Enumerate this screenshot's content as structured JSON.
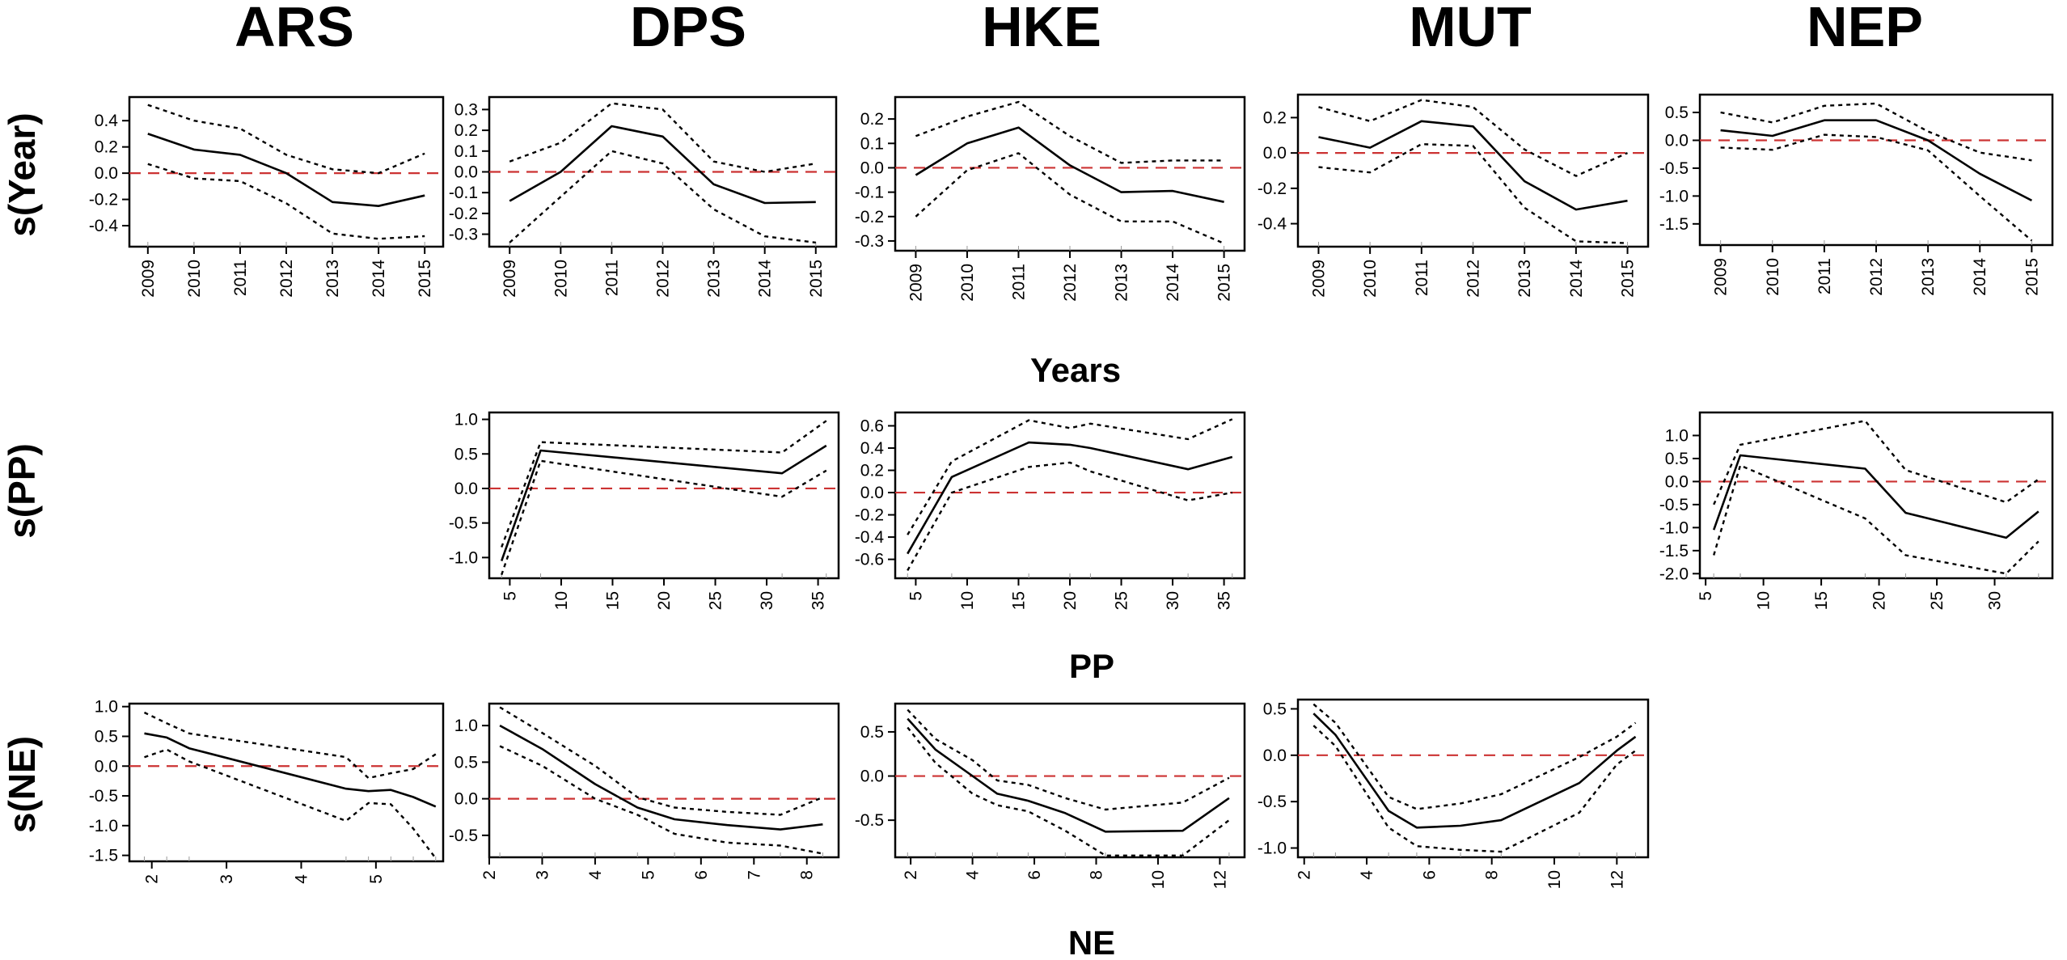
{
  "column_titles": [
    "ARS",
    "DPS",
    "HKE",
    "MUT",
    "NEP"
  ],
  "row_titles": [
    "s(Year)",
    "s(PP)",
    "s(NE)"
  ],
  "axis_titles": [
    "Years",
    "PP",
    "NE"
  ],
  "colors": {
    "fit": "#000000",
    "ci": "#000000",
    "reference": "#cc3333",
    "frame": "#000000"
  },
  "chart_data": [
    {
      "id": "year-ARS",
      "type": "line",
      "ylabel": "s(Year)",
      "xlabel": "Years",
      "xlim": [
        2008.6,
        2015.4
      ],
      "ylim": [
        -0.56,
        0.58
      ],
      "xticks": [
        2009,
        2010,
        2011,
        2012,
        2013,
        2014,
        2015
      ],
      "yticks": [
        -0.4,
        -0.2,
        0.0,
        0.2,
        0.4
      ],
      "x": [
        2009,
        2010,
        2011,
        2012,
        2013,
        2014,
        2015
      ],
      "series": [
        {
          "name": "fit",
          "values": [
            0.3,
            0.18,
            0.14,
            0.0,
            -0.22,
            -0.25,
            -0.17
          ]
        },
        {
          "name": "upper",
          "values": [
            0.52,
            0.4,
            0.34,
            0.14,
            0.03,
            0.0,
            0.15
          ]
        },
        {
          "name": "lower",
          "values": [
            0.07,
            -0.04,
            -0.06,
            -0.23,
            -0.46,
            -0.5,
            -0.48
          ]
        }
      ]
    },
    {
      "id": "year-DPS",
      "type": "line",
      "ylabel": "s(Year)",
      "xlabel": "Years",
      "xlim": [
        2008.6,
        2015.4
      ],
      "ylim": [
        -0.36,
        0.36
      ],
      "xticks": [
        2009,
        2010,
        2011,
        2012,
        2013,
        2014,
        2015
      ],
      "yticks": [
        -0.3,
        -0.2,
        -0.1,
        0.0,
        0.1,
        0.2,
        0.3
      ],
      "x": [
        2009,
        2010,
        2011,
        2012,
        2013,
        2014,
        2015
      ],
      "series": [
        {
          "name": "fit",
          "values": [
            -0.14,
            0.0,
            0.22,
            0.17,
            -0.06,
            -0.15,
            -0.145
          ]
        },
        {
          "name": "upper",
          "values": [
            0.05,
            0.14,
            0.33,
            0.3,
            0.05,
            0.0,
            0.04
          ]
        },
        {
          "name": "lower",
          "values": [
            -0.34,
            -0.12,
            0.1,
            0.04,
            -0.18,
            -0.31,
            -0.34
          ]
        }
      ]
    },
    {
      "id": "year-HKE",
      "type": "line",
      "ylabel": "s(Year)",
      "xlabel": "Years",
      "xlim": [
        2008.6,
        2015.4
      ],
      "ylim": [
        -0.34,
        0.29
      ],
      "xticks": [
        2009,
        2010,
        2011,
        2012,
        2013,
        2014,
        2015
      ],
      "yticks": [
        -0.3,
        -0.2,
        -0.1,
        0.0,
        0.1,
        0.2
      ],
      "x": [
        2009,
        2010,
        2011,
        2012,
        2013,
        2014,
        2015
      ],
      "series": [
        {
          "name": "fit",
          "values": [
            -0.03,
            0.1,
            0.165,
            0.01,
            -0.1,
            -0.095,
            -0.14
          ]
        },
        {
          "name": "upper",
          "values": [
            0.13,
            0.21,
            0.27,
            0.13,
            0.02,
            0.03,
            0.03
          ]
        },
        {
          "name": "lower",
          "values": [
            -0.2,
            -0.01,
            0.06,
            -0.11,
            -0.22,
            -0.22,
            -0.31
          ]
        }
      ]
    },
    {
      "id": "year-MUT",
      "type": "line",
      "ylabel": "s(Year)",
      "xlabel": "Years",
      "xlim": [
        2008.6,
        2015.4
      ],
      "ylim": [
        -0.53,
        0.33
      ],
      "xticks": [
        2009,
        2010,
        2011,
        2012,
        2013,
        2014,
        2015
      ],
      "yticks": [
        -0.4,
        -0.2,
        0.0,
        0.2
      ],
      "x": [
        2009,
        2010,
        2011,
        2012,
        2013,
        2014,
        2015
      ],
      "series": [
        {
          "name": "fit",
          "values": [
            0.09,
            0.03,
            0.18,
            0.15,
            -0.16,
            -0.32,
            -0.27
          ]
        },
        {
          "name": "upper",
          "values": [
            0.26,
            0.18,
            0.3,
            0.26,
            0.02,
            -0.13,
            0.0
          ]
        },
        {
          "name": "lower",
          "values": [
            -0.08,
            -0.11,
            0.05,
            0.04,
            -0.31,
            -0.5,
            -0.51
          ]
        }
      ]
    },
    {
      "id": "year-NEP",
      "type": "line",
      "ylabel": "s(Year)",
      "xlabel": "Years",
      "xlim": [
        2008.6,
        2015.4
      ],
      "ylim": [
        -1.88,
        0.82
      ],
      "xticks": [
        2009,
        2010,
        2011,
        2012,
        2013,
        2014,
        2015
      ],
      "yticks": [
        -1.5,
        -1.0,
        -0.5,
        0.0,
        0.5
      ],
      "x": [
        2009,
        2010,
        2011,
        2012,
        2013,
        2014,
        2015
      ],
      "series": [
        {
          "name": "fit",
          "values": [
            0.18,
            0.08,
            0.36,
            0.36,
            0.0,
            -0.6,
            -1.08
          ]
        },
        {
          "name": "upper",
          "values": [
            0.5,
            0.32,
            0.62,
            0.66,
            0.16,
            -0.22,
            -0.36
          ]
        },
        {
          "name": "lower",
          "values": [
            -0.13,
            -0.17,
            0.1,
            0.06,
            -0.18,
            -1.0,
            -1.8
          ]
        }
      ]
    },
    {
      "id": "pp-DPS",
      "type": "line",
      "ylabel": "s(PP)",
      "xlabel": "PP",
      "xlim": [
        3.0,
        37.0
      ],
      "ylim": [
        -1.3,
        1.1
      ],
      "xticks": [
        5,
        10,
        15,
        20,
        25,
        30,
        35
      ],
      "yticks": [
        -1.0,
        -0.5,
        0.0,
        0.5,
        1.0
      ],
      "x": [
        4.2,
        8.0,
        31.5,
        35.8
      ],
      "series": [
        {
          "name": "fit",
          "values": [
            -1.05,
            0.55,
            0.22,
            0.62
          ]
        },
        {
          "name": "upper",
          "values": [
            -0.85,
            0.67,
            0.52,
            0.98
          ]
        },
        {
          "name": "lower",
          "values": [
            -1.25,
            0.4,
            -0.12,
            0.26
          ]
        }
      ]
    },
    {
      "id": "pp-HKE",
      "type": "line",
      "ylabel": "s(PP)",
      "xlabel": "PP",
      "xlim": [
        3.0,
        37.0
      ],
      "ylim": [
        -0.77,
        0.72
      ],
      "xticks": [
        5,
        10,
        15,
        20,
        25,
        30,
        35
      ],
      "yticks": [
        -0.6,
        -0.4,
        -0.2,
        0.0,
        0.2,
        0.4,
        0.6
      ],
      "x": [
        4.2,
        8.5,
        16.0,
        20.0,
        22.0,
        31.5,
        35.8
      ],
      "series": [
        {
          "name": "fit",
          "values": [
            -0.55,
            0.14,
            0.45,
            0.43,
            0.4,
            0.21,
            0.32
          ]
        },
        {
          "name": "upper",
          "values": [
            -0.38,
            0.28,
            0.65,
            0.58,
            0.62,
            0.48,
            0.66
          ]
        },
        {
          "name": "lower",
          "values": [
            -0.7,
            0.0,
            0.23,
            0.27,
            0.19,
            -0.07,
            0.0
          ]
        }
      ]
    },
    {
      "id": "pp-NEP",
      "type": "line",
      "ylabel": "s(PP)",
      "xlabel": "PP",
      "xlim": [
        4.5,
        35.0
      ],
      "ylim": [
        -2.1,
        1.5
      ],
      "xticks": [
        5,
        10,
        15,
        20,
        25,
        30
      ],
      "yticks": [
        -2.0,
        -1.5,
        -1.0,
        -0.5,
        0.0,
        0.5,
        1.0
      ],
      "x": [
        5.7,
        8.0,
        18.8,
        22.3,
        31.0,
        33.8
      ],
      "series": [
        {
          "name": "fit",
          "values": [
            -1.05,
            0.57,
            0.28,
            -0.68,
            -1.22,
            -0.65
          ]
        },
        {
          "name": "upper",
          "values": [
            -0.5,
            0.8,
            1.32,
            0.25,
            -0.45,
            0.05
          ]
        },
        {
          "name": "lower",
          "values": [
            -1.6,
            0.35,
            -0.8,
            -1.6,
            -2.0,
            -1.3
          ]
        }
      ]
    },
    {
      "id": "ne-ARS",
      "type": "line",
      "ylabel": "s(NE)",
      "xlabel": "NE",
      "xlim": [
        1.7,
        5.9
      ],
      "ylim": [
        -1.6,
        1.05
      ],
      "xticks": [
        2,
        3,
        4,
        5
      ],
      "yticks": [
        -1.5,
        -1.0,
        -0.5,
        0.0,
        0.5,
        1.0
      ],
      "x": [
        1.9,
        2.2,
        2.5,
        4.6,
        4.9,
        5.2,
        5.5,
        5.8
      ],
      "series": [
        {
          "name": "fit",
          "values": [
            0.55,
            0.48,
            0.3,
            -0.38,
            -0.42,
            -0.4,
            -0.52,
            -0.68
          ]
        },
        {
          "name": "upper",
          "values": [
            0.9,
            0.72,
            0.55,
            0.15,
            -0.2,
            -0.12,
            -0.05,
            0.2
          ]
        },
        {
          "name": "lower",
          "values": [
            0.15,
            0.28,
            0.08,
            -0.92,
            -0.62,
            -0.64,
            -1.05,
            -1.55
          ]
        }
      ]
    },
    {
      "id": "ne-DPS",
      "type": "line",
      "ylabel": "s(NE)",
      "xlabel": "NE",
      "xlim": [
        2.0,
        8.6
      ],
      "ylim": [
        -0.8,
        1.3
      ],
      "xticks": [
        2,
        3,
        4,
        5,
        6,
        7,
        8
      ],
      "yticks": [
        -0.5,
        0.0,
        0.5,
        1.0
      ],
      "x": [
        2.2,
        3.0,
        4.0,
        4.8,
        5.5,
        6.5,
        7.5,
        8.3
      ],
      "series": [
        {
          "name": "fit",
          "values": [
            1.0,
            0.68,
            0.2,
            -0.12,
            -0.28,
            -0.36,
            -0.42,
            -0.35
          ]
        },
        {
          "name": "upper",
          "values": [
            1.25,
            0.9,
            0.45,
            0.02,
            -0.12,
            -0.18,
            -0.22,
            0.02
          ]
        },
        {
          "name": "lower",
          "values": [
            0.72,
            0.45,
            0.0,
            -0.22,
            -0.48,
            -0.6,
            -0.64,
            -0.75
          ]
        }
      ]
    },
    {
      "id": "ne-HKE",
      "type": "line",
      "ylabel": "s(NE)",
      "xlabel": "NE",
      "xlim": [
        1.5,
        12.8
      ],
      "ylim": [
        -0.92,
        0.82
      ],
      "xticks": [
        2,
        4,
        6,
        8,
        10,
        12
      ],
      "yticks": [
        -0.5,
        0.0,
        0.5
      ],
      "x": [
        1.9,
        2.8,
        4.0,
        4.8,
        5.8,
        7.0,
        8.3,
        10.8,
        12.3
      ],
      "series": [
        {
          "name": "fit",
          "values": [
            0.65,
            0.3,
            0.0,
            -0.2,
            -0.28,
            -0.42,
            -0.63,
            -0.62,
            -0.25
          ]
        },
        {
          "name": "upper",
          "values": [
            0.75,
            0.42,
            0.18,
            -0.05,
            -0.1,
            -0.25,
            -0.38,
            -0.3,
            -0.02
          ]
        },
        {
          "name": "lower",
          "values": [
            0.55,
            0.15,
            -0.2,
            -0.33,
            -0.4,
            -0.62,
            -0.9,
            -0.9,
            -0.5
          ]
        }
      ]
    },
    {
      "id": "ne-MUT",
      "type": "line",
      "ylabel": "s(NE)",
      "xlabel": "NE",
      "xlim": [
        1.8,
        13.0
      ],
      "ylim": [
        -1.1,
        0.6
      ],
      "xticks": [
        2,
        4,
        6,
        8,
        10,
        12
      ],
      "yticks": [
        -1.0,
        -0.5,
        0.0,
        0.5
      ],
      "x": [
        2.3,
        3.0,
        4.7,
        5.6,
        7.0,
        8.3,
        10.8,
        12.0,
        12.6
      ],
      "series": [
        {
          "name": "fit",
          "values": [
            0.45,
            0.22,
            -0.6,
            -0.78,
            -0.76,
            -0.7,
            -0.3,
            0.05,
            0.2
          ]
        },
        {
          "name": "upper",
          "values": [
            0.55,
            0.35,
            -0.45,
            -0.58,
            -0.52,
            -0.42,
            -0.02,
            0.2,
            0.35
          ]
        },
        {
          "name": "lower",
          "values": [
            0.32,
            0.1,
            -0.78,
            -0.98,
            -1.02,
            -1.04,
            -0.62,
            -0.1,
            0.05
          ]
        }
      ]
    }
  ]
}
